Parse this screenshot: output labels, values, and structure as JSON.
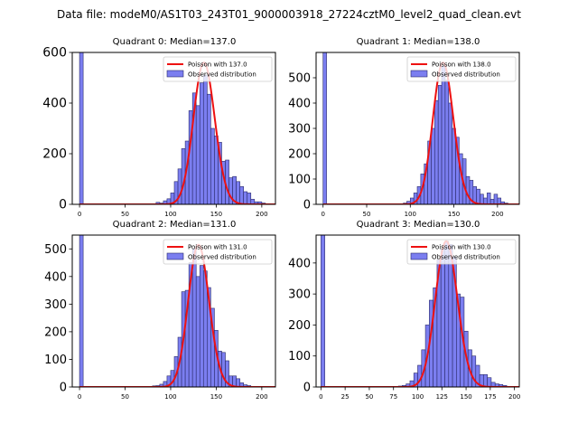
{
  "figure": {
    "suptitle": "Data file: modeM0/AS1T03_243T01_9000003918_27224cztM0_level2_quad_clean.evt"
  },
  "colors": {
    "bar_fill": "#7b7ef0",
    "bar_edge": "#2a2a6a",
    "curve": "#ee1111",
    "frame": "#000000"
  },
  "chart_data": [
    {
      "type": "bar",
      "title": "Quadrant 0: Median=137.0",
      "median": 137.0,
      "xlim": [
        -8,
        215
      ],
      "ylim": [
        0,
        600
      ],
      "xticks": [
        0,
        50,
        100,
        150,
        200
      ],
      "yticks": [
        0,
        200,
        400,
        600
      ],
      "bin_width": 4,
      "bins": [
        {
          "x": 0,
          "count": 600
        },
        {
          "x": 84,
          "count": 8
        },
        {
          "x": 88,
          "count": 5
        },
        {
          "x": 92,
          "count": 14
        },
        {
          "x": 96,
          "count": 22
        },
        {
          "x": 100,
          "count": 45
        },
        {
          "x": 104,
          "count": 90
        },
        {
          "x": 108,
          "count": 140
        },
        {
          "x": 112,
          "count": 220
        },
        {
          "x": 116,
          "count": 250
        },
        {
          "x": 120,
          "count": 370
        },
        {
          "x": 124,
          "count": 440
        },
        {
          "x": 128,
          "count": 390
        },
        {
          "x": 132,
          "count": 480
        },
        {
          "x": 136,
          "count": 510
        },
        {
          "x": 140,
          "count": 435
        },
        {
          "x": 144,
          "count": 300
        },
        {
          "x": 148,
          "count": 270
        },
        {
          "x": 152,
          "count": 245
        },
        {
          "x": 156,
          "count": 170
        },
        {
          "x": 160,
          "count": 175
        },
        {
          "x": 164,
          "count": 105
        },
        {
          "x": 168,
          "count": 110
        },
        {
          "x": 172,
          "count": 90
        },
        {
          "x": 176,
          "count": 70
        },
        {
          "x": 180,
          "count": 50
        },
        {
          "x": 184,
          "count": 45
        },
        {
          "x": 188,
          "count": 20
        },
        {
          "x": 192,
          "count": 10
        },
        {
          "x": 196,
          "count": 10
        },
        {
          "x": 200,
          "count": 5
        }
      ],
      "curve": {
        "mu": 137.0,
        "peak": 560
      },
      "legend": {
        "line_label": "Poisson with 137.0",
        "bar_label": "Observed distribution",
        "position": "top-right"
      }
    },
    {
      "type": "bar",
      "title": "Quadrant 1: Median=138.0",
      "median": 138.0,
      "xlim": [
        -8,
        225
      ],
      "ylim": [
        0,
        600
      ],
      "xticks": [
        0,
        50,
        100,
        150,
        200
      ],
      "yticks": [
        0,
        100,
        200,
        300,
        400,
        500
      ],
      "bin_width": 4,
      "bins": [
        {
          "x": 0,
          "count": 600
        },
        {
          "x": 92,
          "count": 5
        },
        {
          "x": 96,
          "count": 12
        },
        {
          "x": 100,
          "count": 25
        },
        {
          "x": 104,
          "count": 45
        },
        {
          "x": 108,
          "count": 70
        },
        {
          "x": 112,
          "count": 120
        },
        {
          "x": 116,
          "count": 160
        },
        {
          "x": 120,
          "count": 250
        },
        {
          "x": 124,
          "count": 300
        },
        {
          "x": 128,
          "count": 410
        },
        {
          "x": 132,
          "count": 470
        },
        {
          "x": 136,
          "count": 545
        },
        {
          "x": 140,
          "count": 490
        },
        {
          "x": 144,
          "count": 400
        },
        {
          "x": 148,
          "count": 300
        },
        {
          "x": 152,
          "count": 265
        },
        {
          "x": 156,
          "count": 200
        },
        {
          "x": 160,
          "count": 180
        },
        {
          "x": 164,
          "count": 110
        },
        {
          "x": 168,
          "count": 95
        },
        {
          "x": 172,
          "count": 70
        },
        {
          "x": 176,
          "count": 60
        },
        {
          "x": 180,
          "count": 40
        },
        {
          "x": 184,
          "count": 25
        },
        {
          "x": 188,
          "count": 45
        },
        {
          "x": 192,
          "count": 20
        },
        {
          "x": 196,
          "count": 40
        },
        {
          "x": 200,
          "count": 25
        },
        {
          "x": 204,
          "count": 10
        },
        {
          "x": 208,
          "count": 5
        }
      ],
      "curve": {
        "mu": 138.0,
        "peak": 560
      },
      "legend": {
        "line_label": "Poisson with 138.0",
        "bar_label": "Observed distribution",
        "position": "top-right"
      }
    },
    {
      "type": "bar",
      "title": "Quadrant 2: Median=131.0",
      "median": 131.0,
      "xlim": [
        -8,
        215
      ],
      "ylim": [
        0,
        550
      ],
      "xticks": [
        0,
        50,
        100,
        150,
        200
      ],
      "yticks": [
        0,
        100,
        200,
        300,
        400,
        500
      ],
      "bin_width": 4,
      "bins": [
        {
          "x": 0,
          "count": 550
        },
        {
          "x": 80,
          "count": 4
        },
        {
          "x": 84,
          "count": 5
        },
        {
          "x": 88,
          "count": 10
        },
        {
          "x": 92,
          "count": 20
        },
        {
          "x": 96,
          "count": 40
        },
        {
          "x": 100,
          "count": 60
        },
        {
          "x": 104,
          "count": 110
        },
        {
          "x": 108,
          "count": 180
        },
        {
          "x": 112,
          "count": 345
        },
        {
          "x": 116,
          "count": 350
        },
        {
          "x": 120,
          "count": 450
        },
        {
          "x": 124,
          "count": 500
        },
        {
          "x": 128,
          "count": 400
        },
        {
          "x": 132,
          "count": 440
        },
        {
          "x": 136,
          "count": 420
        },
        {
          "x": 140,
          "count": 360
        },
        {
          "x": 144,
          "count": 285
        },
        {
          "x": 148,
          "count": 205
        },
        {
          "x": 152,
          "count": 130
        },
        {
          "x": 156,
          "count": 125
        },
        {
          "x": 160,
          "count": 95
        },
        {
          "x": 164,
          "count": 40
        },
        {
          "x": 168,
          "count": 40
        },
        {
          "x": 172,
          "count": 30
        },
        {
          "x": 176,
          "count": 15
        },
        {
          "x": 180,
          "count": 8
        },
        {
          "x": 184,
          "count": 5
        }
      ],
      "curve": {
        "mu": 131.0,
        "peak": 515
      },
      "legend": {
        "line_label": "Poisson with 131.0",
        "bar_label": "Observed distribution",
        "position": "top-right"
      }
    },
    {
      "type": "bar",
      "title": "Quadrant 3: Median=130.0",
      "median": 130.0,
      "xlim": [
        -5,
        205
      ],
      "ylim": [
        0,
        490
      ],
      "xticks": [
        0,
        25,
        50,
        75,
        100,
        125,
        150,
        175,
        200
      ],
      "yticks": [
        0,
        100,
        200,
        300,
        400
      ],
      "bin_width": 4,
      "bins": [
        {
          "x": 0,
          "count": 490
        },
        {
          "x": 80,
          "count": 3
        },
        {
          "x": 84,
          "count": 5
        },
        {
          "x": 88,
          "count": 10
        },
        {
          "x": 92,
          "count": 20
        },
        {
          "x": 96,
          "count": 45
        },
        {
          "x": 100,
          "count": 70
        },
        {
          "x": 104,
          "count": 120
        },
        {
          "x": 108,
          "count": 200
        },
        {
          "x": 112,
          "count": 280
        },
        {
          "x": 116,
          "count": 320
        },
        {
          "x": 120,
          "count": 410
        },
        {
          "x": 124,
          "count": 445
        },
        {
          "x": 128,
          "count": 470
        },
        {
          "x": 132,
          "count": 460
        },
        {
          "x": 136,
          "count": 420
        },
        {
          "x": 140,
          "count": 300
        },
        {
          "x": 144,
          "count": 290
        },
        {
          "x": 148,
          "count": 180
        },
        {
          "x": 152,
          "count": 120
        },
        {
          "x": 156,
          "count": 100
        },
        {
          "x": 160,
          "count": 70
        },
        {
          "x": 164,
          "count": 40
        },
        {
          "x": 168,
          "count": 40
        },
        {
          "x": 172,
          "count": 30
        },
        {
          "x": 176,
          "count": 15
        },
        {
          "x": 180,
          "count": 10
        },
        {
          "x": 184,
          "count": 8
        },
        {
          "x": 188,
          "count": 5
        }
      ],
      "curve": {
        "mu": 130.0,
        "peak": 470
      },
      "legend": {
        "line_label": "Poisson with 130.0",
        "bar_label": "Observed distribution",
        "position": "top-right"
      }
    }
  ]
}
